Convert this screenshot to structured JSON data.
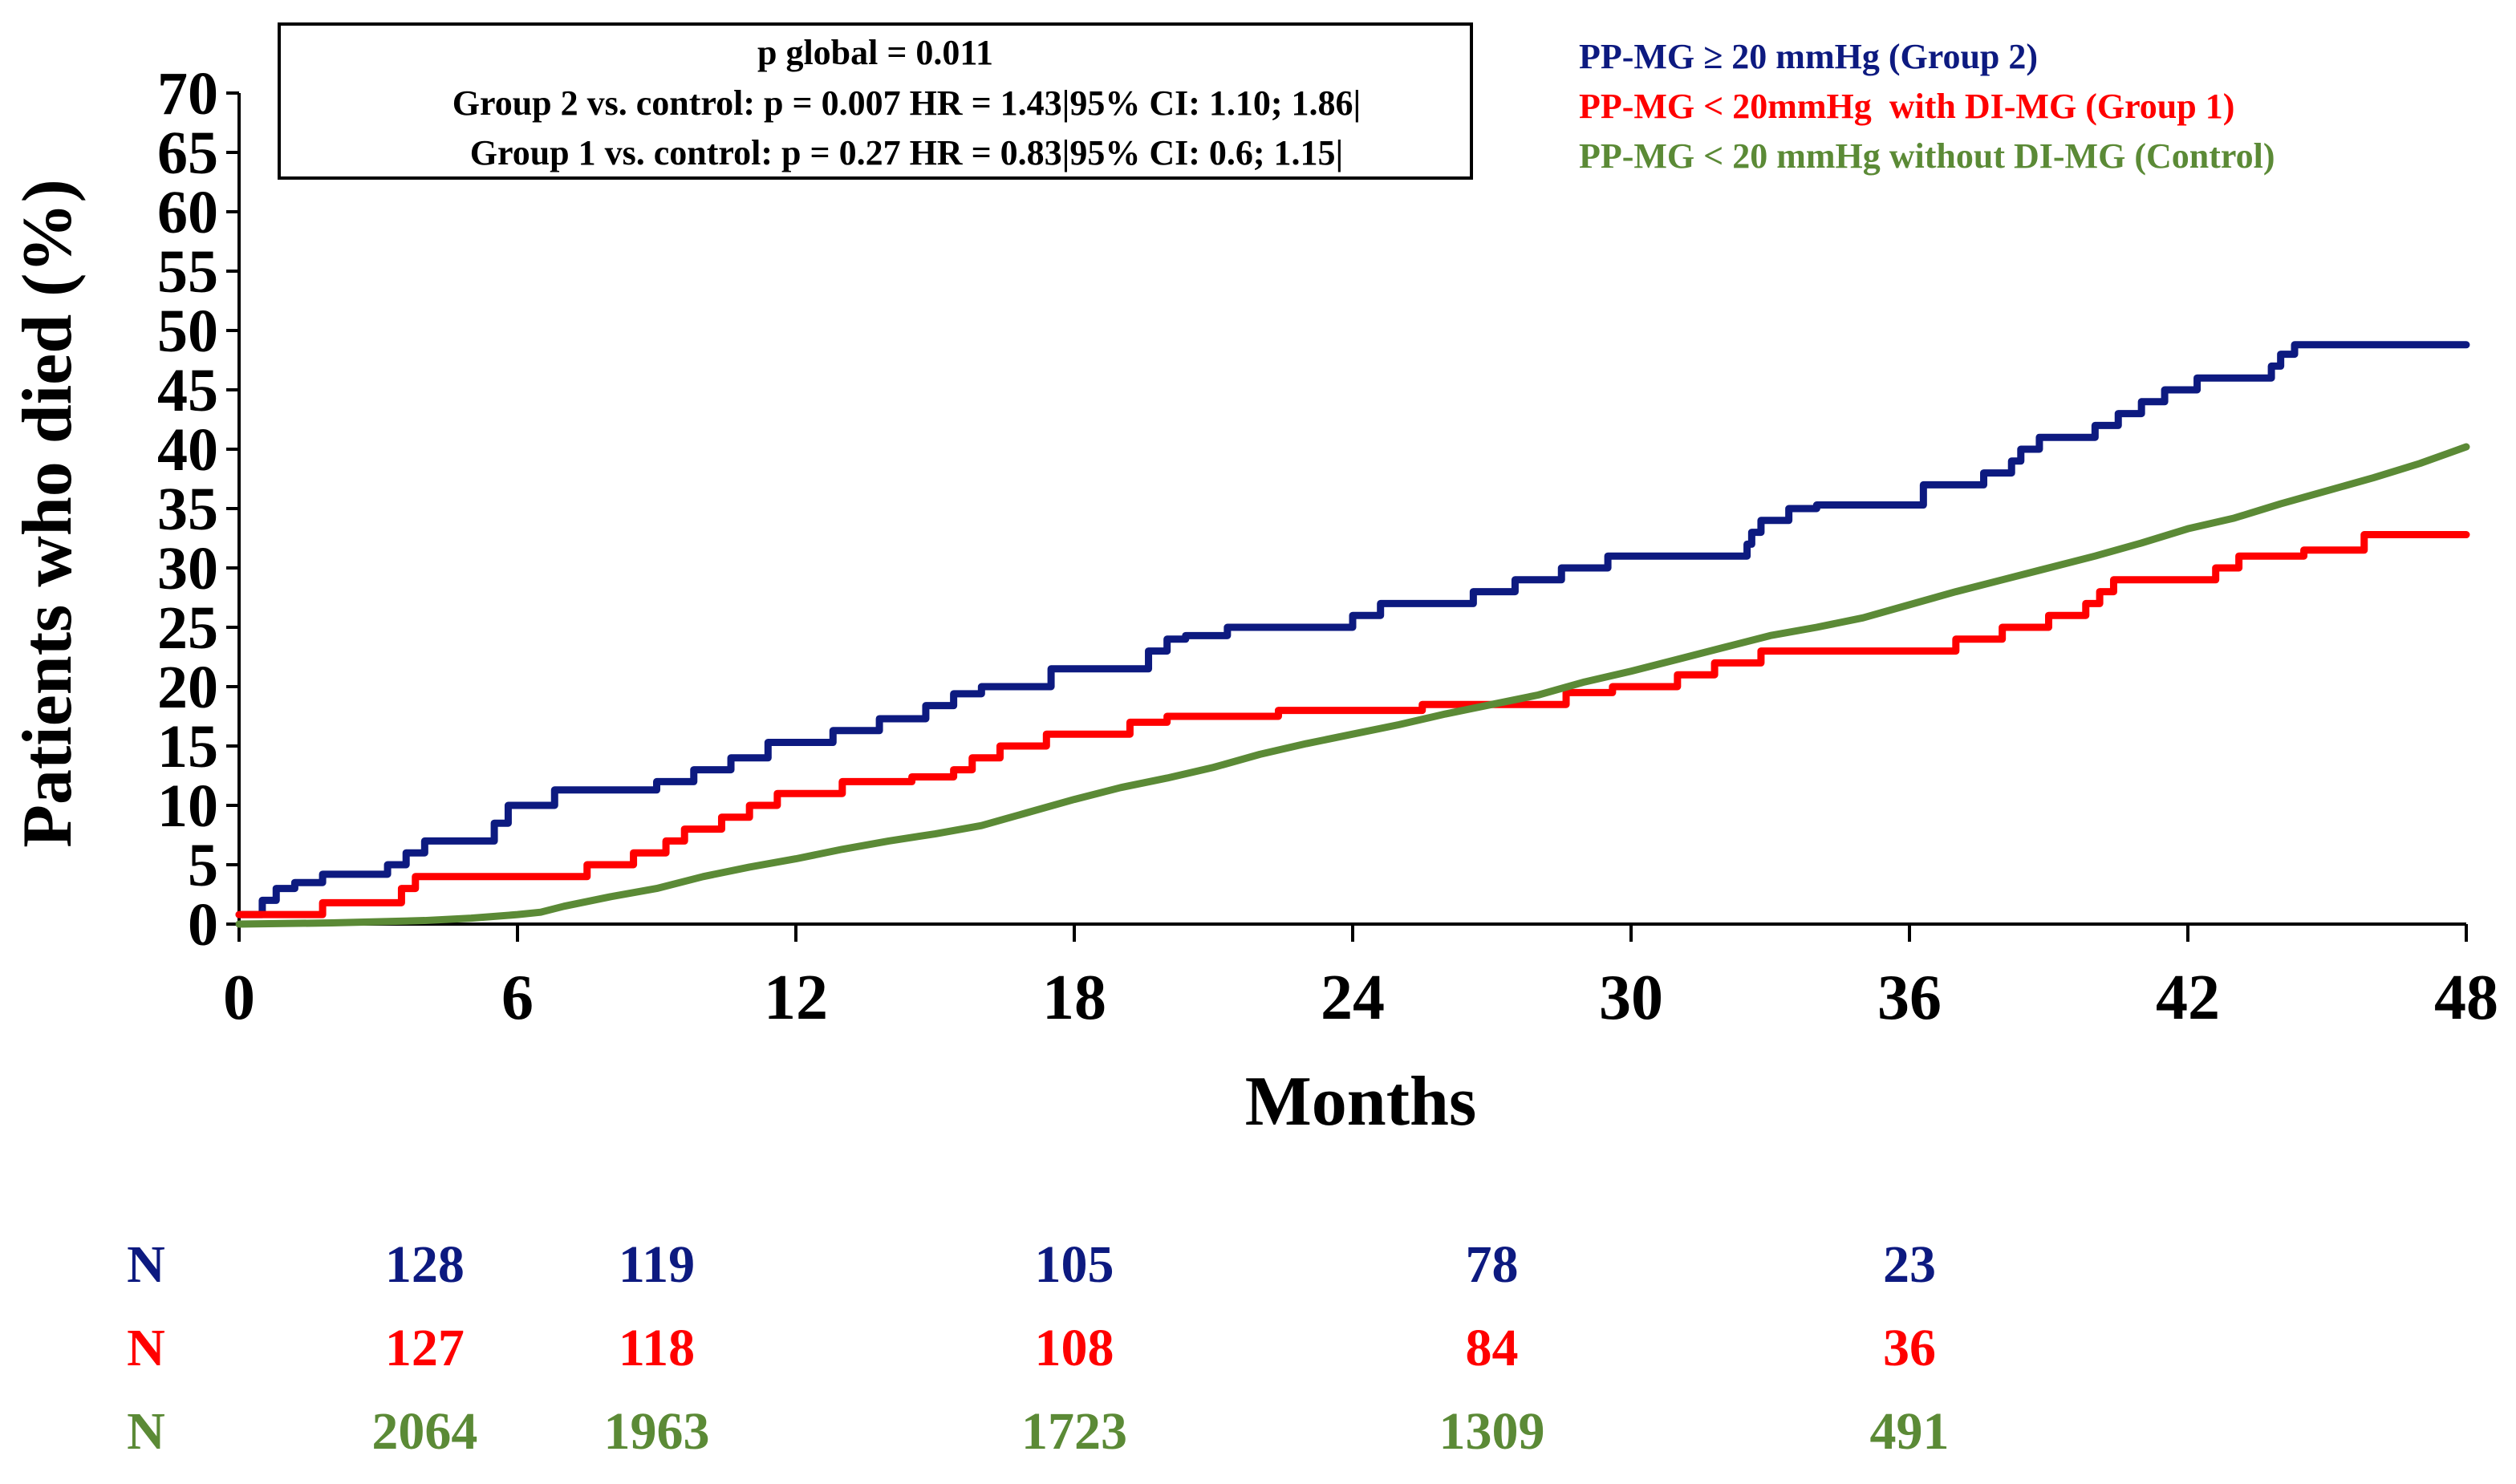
{
  "chart_data": {
    "type": "line",
    "subtype": "kaplan-meier-cumulative-incidence",
    "ylabel": "Patients who died (%)",
    "xlabel": "Months",
    "ylim": [
      0,
      70
    ],
    "xlim": [
      0,
      48
    ],
    "y_ticks": [
      "0",
      "5",
      "10",
      "15",
      "20",
      "25",
      "30",
      "35",
      "40",
      "45",
      "50",
      "55",
      "60",
      "65",
      "70"
    ],
    "x_ticks": [
      "0",
      "6",
      "12",
      "18",
      "24",
      "30",
      "36",
      "42",
      "48"
    ],
    "grid": false,
    "legend_position": "top-right",
    "stats_box": {
      "line1": "p global = 0.011",
      "line2": "Group 2 vs. control: p = 0.007 HR = 1.43|95% CI: 1.10; 1.86|",
      "line3": "Group 1 vs. control: p = 0.27 HR = 0.83|95% CI: 0.6; 1.15|"
    },
    "series": [
      {
        "name": "PP-MG ≥ 20 mmHg (Group 2)",
        "color": "#0d1a80",
        "shape": "step",
        "points": [
          [
            0,
            0.8
          ],
          [
            0.5,
            2
          ],
          [
            0.8,
            3
          ],
          [
            1.2,
            3.5
          ],
          [
            1.8,
            4.2
          ],
          [
            3.2,
            5
          ],
          [
            3.6,
            6
          ],
          [
            4,
            7
          ],
          [
            5.5,
            8.5
          ],
          [
            5.8,
            10
          ],
          [
            6.8,
            11.3
          ],
          [
            9,
            12
          ],
          [
            9.8,
            13
          ],
          [
            10.6,
            14
          ],
          [
            11.4,
            15.3
          ],
          [
            12.8,
            16.3
          ],
          [
            13.8,
            17.3
          ],
          [
            14.8,
            18.4
          ],
          [
            15.4,
            19.4
          ],
          [
            16,
            20
          ],
          [
            17.5,
            21.5
          ],
          [
            19.6,
            23
          ],
          [
            20,
            24
          ],
          [
            20.4,
            24.3
          ],
          [
            21.3,
            25
          ],
          [
            24,
            26
          ],
          [
            24.6,
            27
          ],
          [
            26.6,
            28
          ],
          [
            27.5,
            29
          ],
          [
            28.5,
            30
          ],
          [
            29.5,
            31
          ],
          [
            32.5,
            32
          ],
          [
            32.6,
            33
          ],
          [
            32.8,
            34
          ],
          [
            33.4,
            35
          ],
          [
            34,
            35.3
          ],
          [
            36.3,
            37
          ],
          [
            37.6,
            38
          ],
          [
            38.2,
            39
          ],
          [
            38.4,
            40
          ],
          [
            38.8,
            41
          ],
          [
            40,
            42
          ],
          [
            40.5,
            43
          ],
          [
            41,
            44
          ],
          [
            41.5,
            45
          ],
          [
            42.2,
            46
          ],
          [
            43.8,
            47
          ],
          [
            44,
            48
          ],
          [
            44.3,
            48.8
          ],
          [
            48,
            48.8
          ]
        ]
      },
      {
        "name": "PP-MG < 20mmHg  with DI-MG (Group 1)",
        "color": "#ff0000",
        "shape": "step",
        "points": [
          [
            0,
            0.8
          ],
          [
            1.8,
            1.8
          ],
          [
            3.5,
            3
          ],
          [
            3.8,
            4
          ],
          [
            7.5,
            5
          ],
          [
            8.5,
            6
          ],
          [
            9.2,
            7
          ],
          [
            9.6,
            8
          ],
          [
            10.4,
            9
          ],
          [
            11,
            10
          ],
          [
            11.6,
            11
          ],
          [
            13,
            12
          ],
          [
            14.5,
            12.4
          ],
          [
            15.4,
            13
          ],
          [
            15.8,
            14
          ],
          [
            16.4,
            15
          ],
          [
            17.4,
            16
          ],
          [
            19.2,
            17
          ],
          [
            20,
            17.5
          ],
          [
            22.4,
            18
          ],
          [
            25.5,
            18.5
          ],
          [
            28.6,
            19.5
          ],
          [
            29.6,
            20
          ],
          [
            31,
            21
          ],
          [
            31.8,
            22
          ],
          [
            32.8,
            23
          ],
          [
            37,
            24
          ],
          [
            38,
            25
          ],
          [
            39,
            26
          ],
          [
            39.8,
            27
          ],
          [
            40.1,
            28
          ],
          [
            40.4,
            29
          ],
          [
            42.6,
            30
          ],
          [
            43.1,
            31
          ],
          [
            44.5,
            31.5
          ],
          [
            45.8,
            32.8
          ],
          [
            48,
            32.8
          ]
        ]
      },
      {
        "name": "PP-MG < 20 mmHg without DI-MG (Control)",
        "color": "#5b8a36",
        "shape": "smooth",
        "points": [
          [
            0,
            0
          ],
          [
            2,
            0.1
          ],
          [
            4,
            0.3
          ],
          [
            5,
            0.5
          ],
          [
            6,
            0.8
          ],
          [
            6.5,
            1
          ],
          [
            7,
            1.5
          ],
          [
            8,
            2.3
          ],
          [
            9,
            3
          ],
          [
            10,
            4
          ],
          [
            11,
            4.8
          ],
          [
            12,
            5.5
          ],
          [
            13,
            6.3
          ],
          [
            14,
            7
          ],
          [
            15,
            7.6
          ],
          [
            16,
            8.3
          ],
          [
            17,
            9.4
          ],
          [
            18,
            10.5
          ],
          [
            19,
            11.5
          ],
          [
            20,
            12.3
          ],
          [
            21,
            13.2
          ],
          [
            22,
            14.3
          ],
          [
            23,
            15.2
          ],
          [
            24,
            16
          ],
          [
            25,
            16.8
          ],
          [
            26,
            17.7
          ],
          [
            27,
            18.5
          ],
          [
            28,
            19.3
          ],
          [
            29,
            20.4
          ],
          [
            30,
            21.3
          ],
          [
            31,
            22.3
          ],
          [
            32,
            23.3
          ],
          [
            33,
            24.3
          ],
          [
            34,
            25
          ],
          [
            35,
            25.8
          ],
          [
            36,
            26.9
          ],
          [
            37,
            28
          ],
          [
            38,
            29
          ],
          [
            39,
            30
          ],
          [
            40,
            31
          ],
          [
            41,
            32.1
          ],
          [
            42,
            33.3
          ],
          [
            43,
            34.2
          ],
          [
            44,
            35.4
          ],
          [
            45,
            36.5
          ],
          [
            46,
            37.6
          ],
          [
            47,
            38.8
          ],
          [
            48,
            40.2
          ]
        ]
      }
    ],
    "risk_table": {
      "row_label": "N",
      "times": [
        4,
        9,
        18,
        27,
        36
      ],
      "rows": [
        {
          "group": "Group 2",
          "color": "#0d1a80",
          "values": [
            "128",
            "119",
            "105",
            "78",
            "23"
          ]
        },
        {
          "group": "Group 1",
          "color": "#ff0000",
          "values": [
            "127",
            "118",
            "108",
            "84",
            "36"
          ]
        },
        {
          "group": "Control",
          "color": "#5b8a36",
          "values": [
            "2064",
            "1963",
            "1723",
            "1309",
            "491"
          ]
        }
      ]
    }
  }
}
